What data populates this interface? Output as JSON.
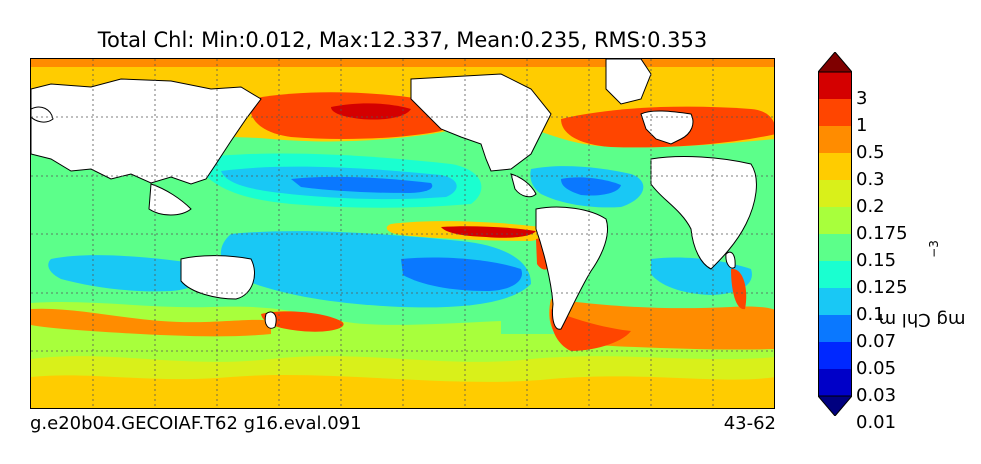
{
  "title": "Total Chl: Min:0.012, Max:12.337, Mean:0.235, RMS:0.353",
  "footer": {
    "case_name": "g.e20b04.GECOIAF.T62 g16.eval.091",
    "years": "43-62"
  },
  "colorbar": {
    "unit_base": "mg Chl m",
    "unit_exponent": "−3",
    "levels": [
      "3",
      "1",
      "0.5",
      "0.3",
      "0.2",
      "0.175",
      "0.15",
      "0.125",
      "0.1",
      "0.07",
      "0.05",
      "0.03",
      "0.01"
    ],
    "colors": [
      "#7f0000",
      "#d40000",
      "#ff4500",
      "#ff8c00",
      "#ffcc00",
      "#d9f01a",
      "#a8ff3c",
      "#5cff8a",
      "#1affd0",
      "#19c8f5",
      "#0a78ff",
      "#0028ff",
      "#0000c8",
      "#00007f"
    ]
  },
  "map": {
    "ocean_background": "#2fd8d0",
    "land_color": "#ffffff",
    "gridlines": "dotted"
  }
}
